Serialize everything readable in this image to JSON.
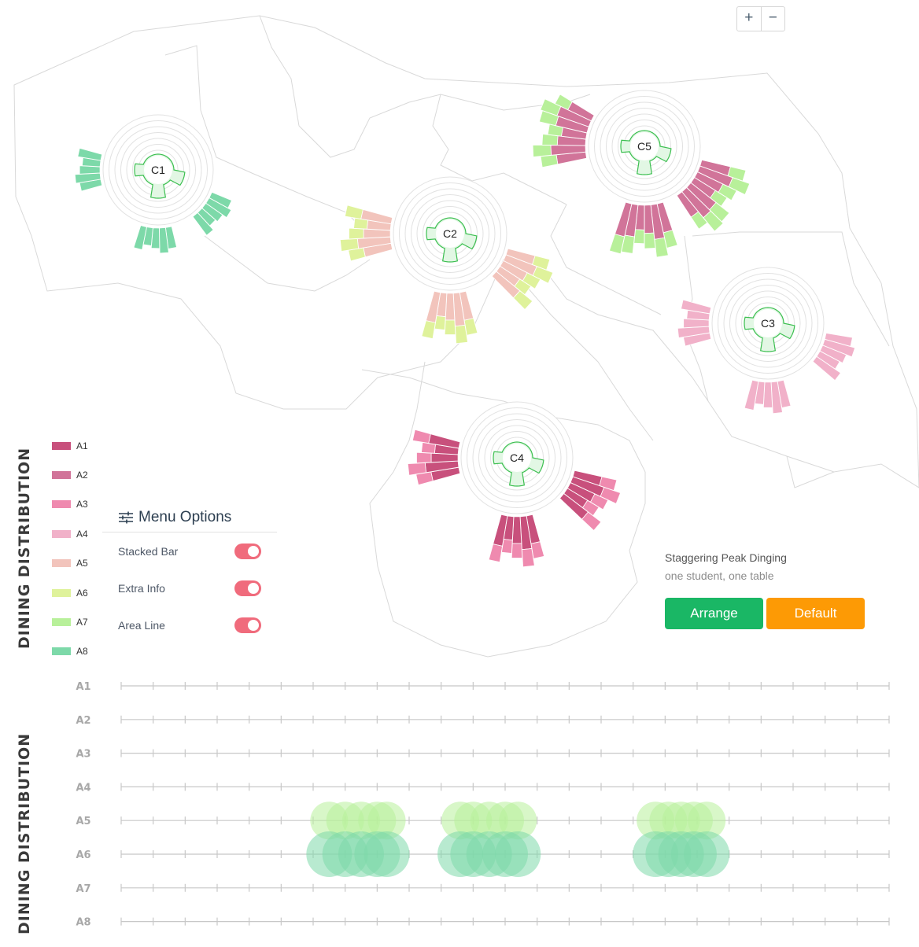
{
  "zoom": {
    "in_label": "+",
    "out_label": "−"
  },
  "section_titles": {
    "map": "DINING DISTRIBUTION",
    "timeline": "DINING DISTRIBUTION"
  },
  "legend": [
    {
      "label": "A1",
      "color": "#c8507c"
    },
    {
      "label": "A2",
      "color": "#d17499"
    },
    {
      "label": "A3",
      "color": "#ef8aaf"
    },
    {
      "label": "A4",
      "color": "#f1b1c9"
    },
    {
      "label": "A5",
      "color": "#f2c4bc"
    },
    {
      "label": "A6",
      "color": "#dff29b"
    },
    {
      "label": "A7",
      "color": "#b8f09a"
    },
    {
      "label": "A8",
      "color": "#7dd9a9"
    }
  ],
  "menu": {
    "title": "Menu Options",
    "options": [
      {
        "label": "Stacked Bar",
        "on": true
      },
      {
        "label": "Extra Info",
        "on": true
      },
      {
        "label": "Area Line",
        "on": true
      }
    ]
  },
  "stagger": {
    "title": "Staggering Peak Dinging",
    "subtitle": "one student, one table",
    "arrange_label": "Arrange",
    "default_label": "Default"
  },
  "canteens": [
    {
      "label": "C1",
      "primary": "A8"
    },
    {
      "label": "C2",
      "primary": "A5",
      "secondary": "A6"
    },
    {
      "label": "C3",
      "primary": "A4"
    },
    {
      "label": "C4",
      "primary": "A1",
      "secondary": "A3"
    },
    {
      "label": "C5",
      "primary": "A2",
      "secondary": "A7"
    }
  ],
  "timeline": {
    "rows": [
      "A1",
      "A2",
      "A3",
      "A4",
      "A5",
      "A6",
      "A7",
      "A8"
    ],
    "tick_count": 25,
    "clusters": [
      {
        "row": "A5",
        "slots": [
          6.5,
          7,
          7.5,
          8,
          8.3
        ],
        "color": "#b8f09a"
      },
      {
        "row": "A6",
        "slots": [
          6.5,
          7,
          7.5,
          8,
          8.3
        ],
        "color": "#7dd9a9"
      },
      {
        "row": "A5",
        "slots": [
          10.6,
          11,
          11.5,
          12,
          12.4
        ],
        "color": "#b8f09a"
      },
      {
        "row": "A6",
        "slots": [
          10.6,
          11,
          11.5,
          12,
          12.4
        ],
        "color": "#7dd9a9"
      },
      {
        "row": "A5",
        "slots": [
          16.7,
          17.1,
          17.5,
          17.9,
          18.3
        ],
        "color": "#b8f09a"
      },
      {
        "row": "A6",
        "slots": [
          16.7,
          17.1,
          17.5,
          17.9,
          18.3
        ],
        "color": "#7dd9a9"
      }
    ]
  }
}
